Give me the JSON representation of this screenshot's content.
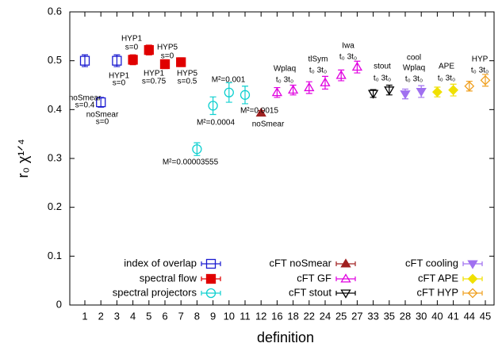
{
  "chart_data": {
    "type": "scatter",
    "xlabel": "definition",
    "ylabel": "r₀ χ¹ᐟ⁴",
    "categories": [
      "1",
      "2",
      "3",
      "4",
      "5",
      "6",
      "7",
      "8",
      "9",
      "10",
      "11",
      "12",
      "16",
      "18",
      "22",
      "24",
      "25",
      "27",
      "33",
      "35",
      "28",
      "30",
      "40",
      "41",
      "44",
      "45"
    ],
    "ylim": [
      0,
      0.6
    ],
    "yticks": [
      0,
      0.1,
      0.2,
      0.3,
      0.4,
      0.5,
      0.6
    ],
    "series": [
      {
        "name": "index of overlap",
        "color": "#1a1ad0",
        "marker": "square-open",
        "values": [
          0.5,
          0.415,
          0.5,
          null,
          null,
          null,
          null,
          null,
          null,
          null,
          null,
          null,
          null,
          null,
          null,
          null,
          null,
          null,
          null,
          null,
          null,
          null,
          null,
          null,
          null,
          null
        ],
        "errors": [
          0.012,
          0.01,
          0.012,
          null,
          null,
          null,
          null,
          null,
          null,
          null,
          null,
          null,
          null,
          null,
          null,
          null,
          null,
          null,
          null,
          null,
          null,
          null,
          null,
          null,
          null,
          null
        ]
      },
      {
        "name": "spectral flow",
        "color": "#e00000",
        "marker": "square-filled",
        "values": [
          null,
          null,
          null,
          0.502,
          0.522,
          0.493,
          0.497,
          null,
          null,
          null,
          null,
          null,
          null,
          null,
          null,
          null,
          null,
          null,
          null,
          null,
          null,
          null,
          null,
          null,
          null,
          null
        ],
        "errors": [
          null,
          null,
          null,
          0.01,
          0.01,
          0.009,
          0.009,
          null,
          null,
          null,
          null,
          null,
          null,
          null,
          null,
          null,
          null,
          null,
          null,
          null,
          null,
          null,
          null,
          null,
          null,
          null
        ]
      },
      {
        "name": "spectral projectors",
        "color": "#10d0d0",
        "marker": "circle-open",
        "values": [
          null,
          null,
          null,
          null,
          null,
          null,
          null,
          0.319,
          0.408,
          0.435,
          0.43,
          null,
          null,
          null,
          null,
          null,
          null,
          null,
          null,
          null,
          null,
          null,
          null,
          null,
          null,
          null
        ],
        "errors": [
          null,
          null,
          null,
          null,
          null,
          null,
          null,
          0.013,
          0.018,
          0.02,
          0.018,
          null,
          null,
          null,
          null,
          null,
          null,
          null,
          null,
          null,
          null,
          null,
          null,
          null,
          null,
          null
        ]
      },
      {
        "name": "cFT noSmear",
        "color": "#a02020",
        "marker": "triangle-filled",
        "values": [
          null,
          null,
          null,
          null,
          null,
          null,
          null,
          null,
          null,
          null,
          null,
          0.393,
          null,
          null,
          null,
          null,
          null,
          null,
          null,
          null,
          null,
          null,
          null,
          null,
          null,
          null
        ],
        "errors": [
          null,
          null,
          null,
          null,
          null,
          null,
          null,
          null,
          null,
          null,
          null,
          0.005,
          null,
          null,
          null,
          null,
          null,
          null,
          null,
          null,
          null,
          null,
          null,
          null,
          null,
          null
        ]
      },
      {
        "name": "cFT GF",
        "color": "#e000e0",
        "marker": "triangle-open",
        "values": [
          null,
          null,
          null,
          null,
          null,
          null,
          null,
          null,
          null,
          null,
          null,
          null,
          0.435,
          0.44,
          0.445,
          0.455,
          0.47,
          0.487,
          null,
          null,
          null,
          null,
          null,
          null,
          null,
          null
        ],
        "errors": [
          null,
          null,
          null,
          null,
          null,
          null,
          null,
          null,
          null,
          null,
          null,
          null,
          0.01,
          0.01,
          0.012,
          0.013,
          0.011,
          0.012,
          null,
          null,
          null,
          null,
          null,
          null,
          null,
          null
        ]
      },
      {
        "name": "cFT stout",
        "color": "#000000",
        "marker": "triangle-down-open",
        "values": [
          null,
          null,
          null,
          null,
          null,
          null,
          null,
          null,
          null,
          null,
          null,
          null,
          null,
          null,
          null,
          null,
          null,
          null,
          0.433,
          0.44,
          null,
          null,
          null,
          null,
          null,
          null
        ],
        "errors": [
          null,
          null,
          null,
          null,
          null,
          null,
          null,
          null,
          null,
          null,
          null,
          null,
          null,
          null,
          null,
          null,
          null,
          null,
          0.008,
          0.01,
          null,
          null,
          null,
          null,
          null,
          null
        ]
      },
      {
        "name": "cFT cooling",
        "color": "#a070f0",
        "marker": "triangle-down-filled",
        "values": [
          null,
          null,
          null,
          null,
          null,
          null,
          null,
          null,
          null,
          null,
          null,
          null,
          null,
          null,
          null,
          null,
          null,
          null,
          null,
          null,
          0.432,
          0.437,
          null,
          null,
          null,
          null
        ],
        "errors": [
          null,
          null,
          null,
          null,
          null,
          null,
          null,
          null,
          null,
          null,
          null,
          null,
          null,
          null,
          null,
          null,
          null,
          null,
          null,
          null,
          0.01,
          0.012,
          null,
          null,
          null,
          null
        ]
      },
      {
        "name": "cFT APE",
        "color": "#f0e000",
        "marker": "diamond-filled",
        "values": [
          null,
          null,
          null,
          null,
          null,
          null,
          null,
          null,
          null,
          null,
          null,
          null,
          null,
          null,
          null,
          null,
          null,
          null,
          null,
          null,
          null,
          null,
          0.436,
          0.44,
          null,
          null
        ],
        "errors": [
          null,
          null,
          null,
          null,
          null,
          null,
          null,
          null,
          null,
          null,
          null,
          null,
          null,
          null,
          null,
          null,
          null,
          null,
          null,
          null,
          null,
          null,
          0.01,
          0.012,
          null,
          null
        ]
      },
      {
        "name": "cFT HYP",
        "color": "#f0a020",
        "marker": "diamond-open",
        "values": [
          null,
          null,
          null,
          null,
          null,
          null,
          null,
          null,
          null,
          null,
          null,
          null,
          null,
          null,
          null,
          null,
          null,
          null,
          null,
          null,
          null,
          null,
          null,
          null,
          0.448,
          0.46
        ],
        "errors": [
          null,
          null,
          null,
          null,
          null,
          null,
          null,
          null,
          null,
          null,
          null,
          null,
          null,
          null,
          null,
          null,
          null,
          null,
          null,
          null,
          null,
          null,
          null,
          null,
          0.01,
          0.012
        ]
      }
    ],
    "annotations": [
      "noSmear",
      "s=0.4",
      "noSmear",
      "s=0",
      "HYP1",
      "s=0",
      "HYP1",
      "s=0",
      "HYP5",
      "s=0",
      "HYP1",
      "s=0.75",
      "HYP5",
      "s=0.5",
      "M²=0.001",
      "M²=0.0004",
      "M²=0.0015",
      "noSmear",
      "M²=0.00003555",
      "Wplaq",
      "t₀ 3t₀",
      "tlSym",
      "t₀ 3t₀",
      "Iwa",
      "t₀ 3t₀",
      "stout",
      "t₀ 3t₀",
      "cool",
      "Wplaq",
      "t₀ 3t₀",
      "APE",
      "t₀ 3t₀",
      "HYP",
      "t₀ 3t₀"
    ]
  }
}
